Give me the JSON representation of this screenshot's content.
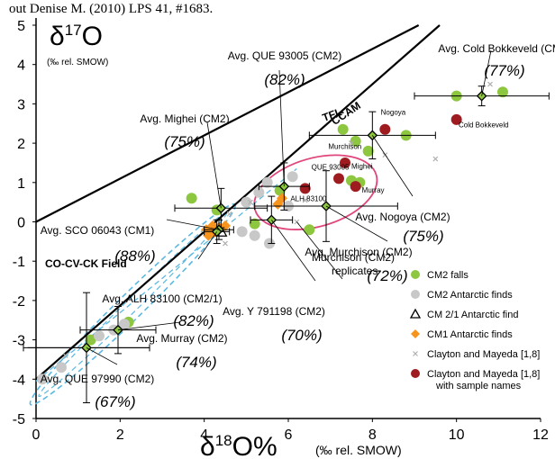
{
  "header_text": "out Denise M. (2010) LPS 41, #1683.",
  "chart_data": {
    "type": "scatter",
    "xlabel_main": "δ18O%",
    "xlabel_unit": "(‰ rel. SMOW)",
    "ylabel_main": "δ17O",
    "ylabel_unit": "(‰ rel. SMOW)",
    "xlim": [
      0,
      12
    ],
    "ylim": [
      -5,
      5
    ],
    "xticks": [
      "0",
      "2",
      "4",
      "6",
      "8",
      "10",
      "12"
    ],
    "yticks": [
      "5",
      "4",
      "3",
      "2",
      "1",
      "0",
      "-1",
      "-2",
      "-3",
      "-4",
      "-5"
    ],
    "line_labels": {
      "tfl": "TFL",
      "ccam": "CCAM"
    },
    "colors": {
      "cm2_falls": "#8dc63f",
      "cm2_antarctic": "#c8c8c8",
      "cm1": "#f7941d",
      "clayton_named": "#9e1c20",
      "ellipse": "#e0457b",
      "dashed": "#5bb8e0"
    },
    "series": [
      {
        "name": "CM2 falls",
        "points": [
          [
            3.7,
            0.6
          ],
          [
            4.3,
            0.3
          ],
          [
            5.2,
            -0.05
          ],
          [
            5.8,
            0.8
          ],
          [
            6.5,
            -0.2
          ],
          [
            7.3,
            2.35
          ],
          [
            7.6,
            2.05
          ],
          [
            7.9,
            1.8
          ],
          [
            7.5,
            1.05
          ],
          [
            7.7,
            1.0
          ],
          [
            8.8,
            2.2
          ],
          [
            10.0,
            3.2
          ],
          [
            11.1,
            3.3
          ],
          [
            1.3,
            -3.0
          ],
          [
            2.2,
            -2.55
          ]
        ]
      },
      {
        "name": "CM2 Antarctic finds",
        "points": [
          [
            5.0,
            0.5
          ],
          [
            5.3,
            0.75
          ],
          [
            5.5,
            1.0
          ],
          [
            5.2,
            -0.35
          ],
          [
            4.9,
            -0.25
          ],
          [
            6.1,
            1.15
          ],
          [
            5.55,
            -0.55
          ],
          [
            6.0,
            0.4
          ],
          [
            1.5,
            -2.9
          ],
          [
            1.85,
            -2.75
          ],
          [
            2.1,
            -2.6
          ],
          [
            0.15,
            -4.0
          ],
          [
            0.6,
            -3.7
          ]
        ]
      },
      {
        "name": "CM 2/1 Antarctic find",
        "points": [
          [
            4.4,
            -0.25
          ]
        ]
      },
      {
        "name": "CM1 Antarctic finds",
        "points": [
          [
            5.85,
            0.6
          ],
          [
            5.75,
            0.45
          ],
          [
            4.1,
            -0.35
          ],
          [
            4.25,
            -0.25
          ],
          [
            4.35,
            -0.15
          ],
          [
            4.5,
            -0.1
          ],
          [
            4.05,
            -0.2
          ],
          [
            4.2,
            -0.1
          ]
        ]
      },
      {
        "name": "Clayton and Mayeda [1,8]",
        "points": [
          [
            4.6,
            0.2
          ],
          [
            5.1,
            0.5
          ],
          [
            6.4,
            0.55
          ],
          [
            7.5,
            2.0
          ],
          [
            8.3,
            1.7
          ],
          [
            10.8,
            3.5
          ],
          [
            4.5,
            -0.55
          ],
          [
            6.2,
            0.0
          ],
          [
            9.5,
            1.6
          ],
          [
            0.7,
            -3.4
          ]
        ]
      },
      {
        "name": "Clayton and Mayeda [1,8] with sample names",
        "points": [
          [
            6.4,
            0.85
          ],
          [
            7.2,
            1.1
          ],
          [
            7.35,
            1.5
          ],
          [
            7.6,
            0.9
          ],
          [
            8.3,
            2.35
          ],
          [
            10.0,
            2.6
          ]
        ]
      }
    ],
    "averages": [
      {
        "label": "Avg. Cold Bokkeveld (CM2)",
        "pct": "(77%)",
        "x": 10.6,
        "y": 3.2,
        "xerr": 1.6,
        "yerr": 0.25
      },
      {
        "label": "Avg. QUE 93005 (CM2)",
        "pct": "(82%)",
        "x": 5.9,
        "y": 0.9,
        "xerr": 0.6,
        "yerr": 0.6
      },
      {
        "label": "Avg. Mighei (CM2)",
        "pct": "(75%)",
        "x": 4.4,
        "y": 0.35,
        "xerr": 1.1,
        "yerr": 0.5
      },
      {
        "label": "Avg. Nogoya (CM2)",
        "pct": "(75%)",
        "x": 8.0,
        "y": 2.2,
        "xerr": 1.5,
        "yerr": 0.6
      },
      {
        "label": "Avg. Murchison (CM2)",
        "pct": "(72%)",
        "x": 6.9,
        "y": 0.4,
        "xerr": 1.7,
        "yerr": 0.9
      },
      {
        "label": "Avg. SCO 06043 (CM1)",
        "pct": "(88%)",
        "x": 4.35,
        "y": -0.2,
        "xerr": 0.35,
        "yerr": 0.25
      },
      {
        "label": "Avg. ALH 83100 (CM2/1)",
        "pct": "(82%)",
        "x": 4.3,
        "y": -0.25,
        "xerr": 0.3,
        "yerr": 0.3
      },
      {
        "label": "Avg. Y 791198 (CM2)",
        "pct": "(70%)",
        "x": 5.6,
        "y": 0.05,
        "xerr": 0.5,
        "yerr": 0.6
      },
      {
        "label": "Avg. Murray (CM2)",
        "pct": "(74%)",
        "x": 1.95,
        "y": -2.75,
        "xerr": 0.9,
        "yerr": 0.6
      },
      {
        "label": "Avg. QUE 97990 (CM2)",
        "pct": "(67%)",
        "x": 1.2,
        "y": -3.2,
        "xerr": 1.5,
        "yerr": 1.4
      }
    ],
    "sample_labels": [
      {
        "text": "Nogoya",
        "x": 8.2,
        "y": 2.72
      },
      {
        "text": "Cold Bokkeveld",
        "x": 10.05,
        "y": 2.4
      },
      {
        "text": "Murchison",
        "x": 6.95,
        "y": 1.85
      },
      {
        "text": "QUE 93005",
        "x": 6.55,
        "y": 1.33
      },
      {
        "text": "Mighei",
        "x": 7.5,
        "y": 1.35
      },
      {
        "text": "Murray",
        "x": 7.75,
        "y": 0.74
      },
      {
        "text": "ALH 83100",
        "x": 6.05,
        "y": 0.53
      }
    ],
    "annotations": {
      "co_field": "CO-CV-CK Field",
      "murchison_replicates_1": "Murchison (CM2)",
      "murchison_replicates_2": "replicates"
    },
    "legend": [
      {
        "label": "CM2 falls",
        "marker": "circle-green"
      },
      {
        "label": "CM2 Antarctic finds",
        "marker": "circle-gray"
      },
      {
        "label": "CM 2/1 Antarctic find",
        "marker": "triangle-open"
      },
      {
        "label": "CM1 Antarctic finds",
        "marker": "diamond-orange"
      },
      {
        "label": "Clayton and Mayeda [1,8]",
        "marker": "x-small-gray"
      },
      {
        "label": "Clayton and Mayeda [1,8]",
        "label2": "with sample names",
        "marker": "circle-darkred"
      }
    ]
  }
}
